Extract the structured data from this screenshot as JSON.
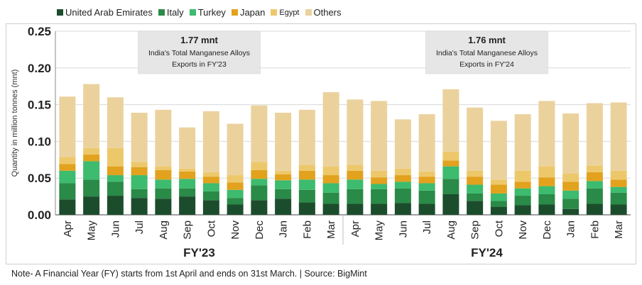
{
  "chart_data": {
    "type": "bar",
    "stacked": true,
    "title": "",
    "xlabel": "",
    "ylabel": "Quantity in million tonnes (mnt)",
    "ylim": [
      0,
      0.25
    ],
    "yticks": [
      "0.00",
      "0.05",
      "0.10",
      "0.15",
      "0.20",
      "0.25"
    ],
    "grid": true,
    "legend_position": "top-left",
    "categories": [
      "Apr",
      "May",
      "Jun",
      "Jul",
      "Aug",
      "Sep",
      "Oct",
      "Nov",
      "Dec",
      "Jan",
      "Feb",
      "Mar",
      "Apr",
      "May",
      "Jun",
      "Jul",
      "Aug",
      "Sep",
      "Oct",
      "Nov",
      "Dec",
      "Jan",
      "Feb",
      "Mar"
    ],
    "groups": [
      {
        "label": "FY'23",
        "start": 0,
        "end": 11
      },
      {
        "label": "FY'24",
        "start": 12,
        "end": 23
      }
    ],
    "series": [
      {
        "name": "United Arab Emirates",
        "color": "#1b4d2c",
        "values": [
          0.021,
          0.025,
          0.026,
          0.023,
          0.022,
          0.025,
          0.02,
          0.014,
          0.02,
          0.022,
          0.017,
          0.015,
          0.015,
          0.015,
          0.016,
          0.015,
          0.028,
          0.019,
          0.011,
          0.013,
          0.014,
          0.008,
          0.015,
          0.014
        ]
      },
      {
        "name": "Italy",
        "color": "#2a8a47",
        "values": [
          0.022,
          0.023,
          0.019,
          0.012,
          0.014,
          0.011,
          0.012,
          0.009,
          0.02,
          0.013,
          0.017,
          0.015,
          0.02,
          0.02,
          0.02,
          0.018,
          0.021,
          0.01,
          0.008,
          0.013,
          0.014,
          0.014,
          0.021,
          0.016
        ]
      },
      {
        "name": "Turkey",
        "color": "#3dbb6e",
        "values": [
          0.017,
          0.025,
          0.009,
          0.019,
          0.012,
          0.013,
          0.011,
          0.011,
          0.009,
          0.012,
          0.014,
          0.013,
          0.013,
          0.007,
          0.009,
          0.01,
          0.017,
          0.012,
          0.01,
          0.01,
          0.011,
          0.011,
          0.01,
          0.008
        ]
      },
      {
        "name": "Japan",
        "color": "#e2a21e",
        "values": [
          0.009,
          0.009,
          0.012,
          0.011,
          0.013,
          0.01,
          0.009,
          0.01,
          0.012,
          0.008,
          0.012,
          0.011,
          0.012,
          0.009,
          0.009,
          0.009,
          0.008,
          0.011,
          0.012,
          0.009,
          0.012,
          0.012,
          0.012,
          0.01
        ]
      },
      {
        "name": "Egypt",
        "color": "#edc86b",
        "values": [
          0.01,
          0.009,
          0.025,
          0.007,
          0.005,
          0.004,
          0.006,
          0.01,
          0.011,
          0.005,
          0.008,
          0.012,
          0.008,
          0.009,
          0.009,
          0.007,
          0.012,
          0.008,
          0.007,
          0.015,
          0.015,
          0.011,
          0.009,
          0.012
        ]
      },
      {
        "name": "Others",
        "color": "#ebd29d",
        "values": [
          0.082,
          0.087,
          0.069,
          0.067,
          0.077,
          0.056,
          0.083,
          0.07,
          0.077,
          0.079,
          0.075,
          0.101,
          0.089,
          0.095,
          0.067,
          0.078,
          0.085,
          0.086,
          0.08,
          0.077,
          0.089,
          0.082,
          0.085,
          0.093
        ]
      }
    ],
    "annotations": [
      {
        "group": "FY'23",
        "headline": "1.77 mnt",
        "line1": "India's Total Manganese Alloys",
        "line2": "Exports in FY'23"
      },
      {
        "group": "FY'24",
        "headline": "1.76 mnt",
        "line1": "India's Total Manganese Alloys",
        "line2": "Exports in FY'24"
      }
    ]
  },
  "footer": {
    "note": "Note- A Financial Year (FY) starts from 1st April and ends on 31st March. | Source: BigMint"
  }
}
